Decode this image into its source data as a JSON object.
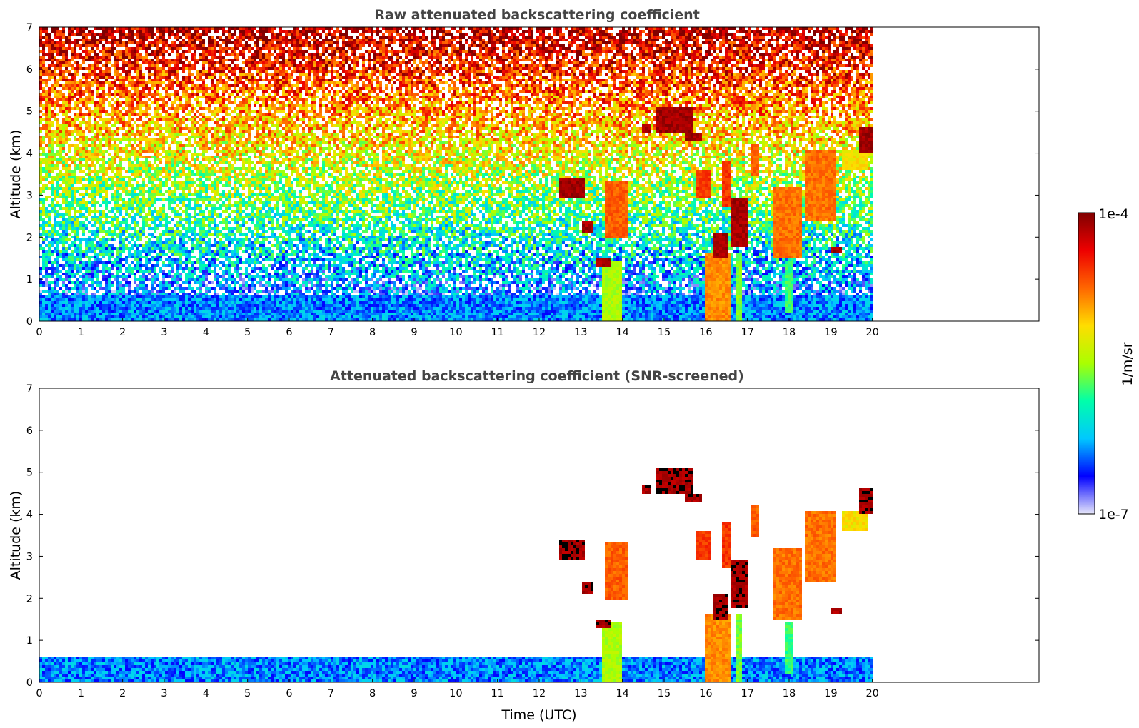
{
  "chart_data": [
    {
      "type": "heatmap",
      "title": "Raw attenuated backscattering coefficient",
      "xlabel": "",
      "ylabel": "Altitude (km)",
      "xlim": [
        0,
        24
      ],
      "ylim": [
        0,
        7
      ],
      "x_ticks": [
        0,
        1,
        2,
        3,
        4,
        5,
        6,
        7,
        8,
        9,
        10,
        11,
        12,
        13,
        14,
        15,
        16,
        17,
        18,
        19,
        20
      ],
      "y_ticks": [
        0,
        1,
        2,
        3,
        4,
        5,
        6,
        7
      ],
      "data_extent_x": [
        0,
        20
      ],
      "screened": false,
      "cloud_features": [
        {
          "x": [
            12.5,
            13.1
          ],
          "y": [
            2.9,
            3.4
          ],
          "level": 1.0
        },
        {
          "x": [
            13.0,
            13.3
          ],
          "y": [
            2.1,
            2.4
          ],
          "level": 1.0
        },
        {
          "x": [
            13.4,
            13.7
          ],
          "y": [
            1.3,
            1.5
          ],
          "level": 1.0
        },
        {
          "x": [
            13.6,
            14.1
          ],
          "y": [
            2.0,
            3.3
          ],
          "level": 0.8
        },
        {
          "x": [
            13.5,
            14.0
          ],
          "y": [
            0.0,
            1.4
          ],
          "level": 0.55
        },
        {
          "x": [
            14.5,
            14.7
          ],
          "y": [
            4.5,
            4.7
          ],
          "level": 1.0
        },
        {
          "x": [
            15.5,
            15.9
          ],
          "y": [
            4.3,
            4.5
          ],
          "level": 1.0
        },
        {
          "x": [
            14.8,
            15.7
          ],
          "y": [
            4.5,
            5.1
          ],
          "level": 1.0
        },
        {
          "x": [
            15.8,
            16.1
          ],
          "y": [
            2.9,
            3.6
          ],
          "level": 0.85
        },
        {
          "x": [
            16.4,
            16.6
          ],
          "y": [
            2.7,
            3.8
          ],
          "level": 0.85
        },
        {
          "x": [
            16.6,
            17.0
          ],
          "y": [
            1.8,
            2.9
          ],
          "level": 1.0
        },
        {
          "x": [
            16.2,
            16.5
          ],
          "y": [
            1.5,
            2.1
          ],
          "level": 1.0
        },
        {
          "x": [
            16.0,
            16.6
          ],
          "y": [
            0.0,
            1.6
          ],
          "level": 0.75
        },
        {
          "x": [
            16.7,
            16.9
          ],
          "y": [
            0.0,
            1.6
          ],
          "level": 0.5
        },
        {
          "x": [
            17.1,
            17.3
          ],
          "y": [
            3.5,
            4.2
          ],
          "level": 0.8
        },
        {
          "x": [
            17.6,
            18.3
          ],
          "y": [
            1.5,
            3.2
          ],
          "level": 0.78
        },
        {
          "x": [
            17.9,
            18.1
          ],
          "y": [
            0.2,
            1.4
          ],
          "level": 0.45
        },
        {
          "x": [
            18.4,
            19.1
          ],
          "y": [
            2.4,
            4.1
          ],
          "level": 0.78
        },
        {
          "x": [
            19.0,
            19.3
          ],
          "y": [
            1.6,
            1.8
          ],
          "level": 1.0
        },
        {
          "x": [
            19.3,
            19.9
          ],
          "y": [
            3.6,
            4.1
          ],
          "level": 0.65
        },
        {
          "x": [
            19.7,
            20.0
          ],
          "y": [
            4.0,
            4.6
          ],
          "level": 1.0
        }
      ]
    },
    {
      "type": "heatmap",
      "title": "Attenuated backscattering coefficient (SNR-screened)",
      "xlabel": "Time (UTC)",
      "ylabel": "Altitude (km)",
      "xlim": [
        0,
        24
      ],
      "ylim": [
        0,
        7
      ],
      "x_ticks": [
        0,
        1,
        2,
        3,
        4,
        5,
        6,
        7,
        8,
        9,
        10,
        11,
        12,
        13,
        14,
        15,
        16,
        17,
        18,
        19,
        20
      ],
      "y_ticks": [
        0,
        1,
        2,
        3,
        4,
        5,
        6,
        7
      ],
      "data_extent_x": [
        0,
        20
      ],
      "screened": true
    }
  ],
  "colorbar": {
    "min_label": "1e-7",
    "max_label": "1e-4",
    "label": "1/m/sr",
    "colormap": [
      "#e6e6fa",
      "#0000ff",
      "#00c8ff",
      "#00ffaa",
      "#aaff00",
      "#ffdd00",
      "#ff6600",
      "#ee0000",
      "#800000"
    ]
  }
}
